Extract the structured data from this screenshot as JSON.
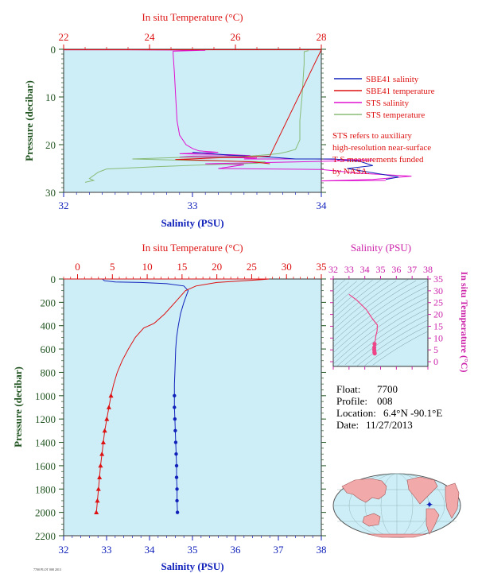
{
  "colors": {
    "panel_bg": "#cdeef7",
    "temperature": "#dd1111",
    "salinity": "#1122bb",
    "sts_salinity": "#e010d0",
    "sts_temperature": "#88bb77",
    "pressure_axis": "#225522",
    "ts_axis": "#cc22aa",
    "ts_curve": "#ee4488",
    "note": "#dd1111"
  },
  "info": {
    "float_label": "Float:",
    "float_value": "7700",
    "profile_label": "Profile:",
    "profile_value": "008",
    "location_label": "Location:",
    "location_value": "6.4°N  -90.1°E",
    "date_label": "Date:",
    "date_value": "11/27/2013"
  },
  "note": [
    "STS refers to auxiliary",
    "high-resolution near-surface",
    "T-S measurements funded",
    "by NASA."
  ],
  "footer": "7700 PLOT 008 2013",
  "map": {
    "marker_lat": 6.4,
    "marker_lon": -90.1
  },
  "chart_data": [
    {
      "type": "line",
      "id": "top",
      "xlabel": "Salinity (PSU)",
      "x2label": "In situ Temperature (°C)",
      "ylabel": "Pressure (decibar)",
      "xlim": [
        32,
        34
      ],
      "xticks": [
        32,
        33,
        34
      ],
      "x2lim": [
        22,
        28
      ],
      "x2ticks": [
        22,
        24,
        26,
        28
      ],
      "ylim": [
        30,
        0
      ],
      "yticks": [
        0,
        10,
        20,
        30
      ],
      "legend": [
        {
          "name": "SBE41 salinity",
          "color": "#1122bb"
        },
        {
          "name": "SBE41 temperature",
          "color": "#dd1111"
        },
        {
          "name": "STS salinity",
          "color": "#e010d0"
        },
        {
          "name": "STS temperature",
          "color": "#88bb77"
        }
      ],
      "series": [
        {
          "name": "STS salinity",
          "axis": "salinity",
          "color": "#e010d0",
          "points": [
            [
              32.0,
              0.1
            ],
            [
              32.5,
              0.1
            ],
            [
              33.1,
              0.2
            ],
            [
              32.85,
              0.4
            ],
            [
              32.85,
              1
            ],
            [
              32.86,
              5
            ],
            [
              32.87,
              10
            ],
            [
              32.88,
              15
            ],
            [
              32.9,
              18
            ],
            [
              32.95,
              20
            ],
            [
              33.0,
              20.8
            ],
            [
              33.05,
              21.3
            ],
            [
              33.2,
              21.6
            ],
            [
              32.9,
              21.9
            ],
            [
              33.3,
              22.1
            ],
            [
              33.45,
              22.3
            ],
            [
              33.0,
              22.4
            ],
            [
              32.9,
              22.6
            ],
            [
              33.5,
              22.8
            ],
            [
              33.4,
              23
            ],
            [
              33.95,
              23
            ],
            [
              34.4,
              23.2
            ],
            [
              34.0,
              23.5
            ],
            [
              33.5,
              23.8
            ],
            [
              33.1,
              24
            ],
            [
              33.4,
              24.2
            ],
            [
              33.2,
              25
            ],
            [
              34.0,
              25.2
            ],
            [
              34.3,
              26
            ],
            [
              34.7,
              26.6
            ],
            [
              34.4,
              27.3
            ],
            [
              34.0,
              27.6
            ],
            [
              34.5,
              27.5
            ]
          ]
        },
        {
          "name": "SBE41 salinity",
          "axis": "salinity",
          "color": "#1122bb",
          "points": [
            [
              33.0,
              21.6
            ],
            [
              33.3,
              22.2
            ],
            [
              33.6,
              22.6
            ],
            [
              33.8,
              23.0
            ],
            [
              34.1,
              23.0
            ],
            [
              34.3,
              23.5
            ],
            [
              34.4,
              24.4
            ],
            [
              34.2,
              25.0
            ],
            [
              34.6,
              26.8
            ],
            [
              34.5,
              27.3
            ]
          ]
        },
        {
          "name": "STS temperature",
          "axis": "temperature",
          "color": "#88bb77",
          "points": [
            [
              27.7,
              0.3
            ],
            [
              27.6,
              0.5
            ],
            [
              27.6,
              3
            ],
            [
              27.55,
              10
            ],
            [
              27.5,
              15
            ],
            [
              27.5,
              19
            ],
            [
              27.4,
              21
            ],
            [
              27.2,
              21.5
            ],
            [
              27.0,
              21.9
            ],
            [
              26.6,
              22.2
            ],
            [
              26.2,
              22.5
            ],
            [
              25.0,
              22.6
            ],
            [
              24.3,
              22.8
            ],
            [
              23.6,
              23.0
            ],
            [
              24.5,
              23.2
            ],
            [
              25.5,
              23.4
            ],
            [
              26.7,
              23.6
            ],
            [
              26.5,
              23.9
            ],
            [
              25.4,
              24.2
            ],
            [
              24.2,
              24.6
            ],
            [
              23.0,
              25.1
            ],
            [
              22.8,
              25.8
            ],
            [
              22.6,
              27.1
            ],
            [
              22.7,
              27.5
            ],
            [
              22.5,
              27.9
            ]
          ]
        },
        {
          "name": "SBE41 temperature",
          "axis": "temperature",
          "color": "#dd1111",
          "points": [
            [
              22.0,
              0.1
            ],
            [
              28.0,
              0.1
            ],
            [
              26.8,
              22.4
            ],
            [
              25.5,
              22.8
            ],
            [
              24.6,
              23.1
            ],
            [
              26.4,
              23.6
            ],
            [
              26.8,
              24.0
            ]
          ]
        }
      ]
    },
    {
      "type": "line",
      "id": "bottom",
      "xlabel": "Salinity (PSU)",
      "x2label": "In situ Temperature (°C)",
      "ylabel": "Pressure (decibar)",
      "xlim": [
        32,
        38
      ],
      "xticks": [
        32,
        33,
        34,
        35,
        36,
        37,
        38
      ],
      "x2lim": [
        -2,
        35
      ],
      "x2ticks": [
        0,
        5,
        10,
        15,
        20,
        25,
        30,
        35
      ],
      "ylim": [
        2200,
        0
      ],
      "yticks": [
        0,
        200,
        400,
        600,
        800,
        1000,
        1200,
        1400,
        1600,
        1800,
        2000,
        2200
      ],
      "series": [
        {
          "name": "Salinity",
          "axis": "salinity",
          "color": "#1122bb",
          "points": [
            [
              32.0,
              0
            ],
            [
              32.9,
              0
            ],
            [
              32.95,
              15
            ],
            [
              33.2,
              25
            ],
            [
              33.8,
              30
            ],
            [
              34.4,
              40
            ],
            [
              34.8,
              60
            ],
            [
              34.9,
              100
            ],
            [
              34.85,
              150
            ],
            [
              34.8,
              200
            ],
            [
              34.72,
              300
            ],
            [
              34.67,
              400
            ],
            [
              34.63,
              500
            ],
            [
              34.61,
              600
            ],
            [
              34.6,
              700
            ],
            [
              34.59,
              800
            ],
            [
              34.58,
              900
            ],
            [
              34.58,
              1000
            ],
            [
              34.58,
              1100
            ],
            [
              34.59,
              1200
            ],
            [
              34.6,
              1300
            ],
            [
              34.61,
              1400
            ],
            [
              34.62,
              1500
            ],
            [
              34.63,
              1600
            ],
            [
              34.63,
              1700
            ],
            [
              34.64,
              1800
            ],
            [
              34.64,
              1900
            ],
            [
              34.65,
              2000
            ]
          ],
          "markers_from": 1000
        },
        {
          "name": "Temperature",
          "axis": "temperature",
          "color": "#dd1111",
          "points": [
            [
              -2,
              0
            ],
            [
              27.5,
              0
            ],
            [
              26.5,
              5
            ],
            [
              20,
              30
            ],
            [
              17,
              60
            ],
            [
              15.5,
              100
            ],
            [
              14,
              200
            ],
            [
              12.5,
              300
            ],
            [
              11,
              380
            ],
            [
              9.5,
              420
            ],
            [
              8.3,
              500
            ],
            [
              7.3,
              600
            ],
            [
              6.4,
              700
            ],
            [
              5.7,
              800
            ],
            [
              5.2,
              900
            ],
            [
              4.8,
              1000
            ],
            [
              4.5,
              1100
            ],
            [
              4.2,
              1200
            ],
            [
              3.9,
              1300
            ],
            [
              3.7,
              1400
            ],
            [
              3.5,
              1500
            ],
            [
              3.3,
              1600
            ],
            [
              3.15,
              1700
            ],
            [
              3.0,
              1800
            ],
            [
              2.85,
              1900
            ],
            [
              2.7,
              2000
            ]
          ],
          "markers_from": 1000
        }
      ]
    },
    {
      "type": "line",
      "id": "ts",
      "xlabel": "Salinity (PSU)",
      "ylabel": "In situ Temperature (°C)",
      "xlim": [
        32,
        38
      ],
      "xticks": [
        32,
        33,
        34,
        35,
        36,
        37,
        38
      ],
      "ylim": [
        -2,
        35
      ],
      "yticks": [
        0,
        5,
        10,
        15,
        20,
        25,
        30,
        35
      ],
      "series": [
        {
          "name": "T-S",
          "color": "#ee4488",
          "points": [
            [
              33.0,
              28.5
            ],
            [
              33.5,
              26
            ],
            [
              34.1,
              22
            ],
            [
              34.5,
              18
            ],
            [
              34.8,
              15.5
            ],
            [
              34.78,
              13
            ],
            [
              34.7,
              11
            ],
            [
              34.66,
              9
            ],
            [
              34.62,
              7.5
            ],
            [
              34.6,
              6
            ],
            [
              34.6,
              5
            ],
            [
              34.61,
              4
            ],
            [
              34.63,
              3.5
            ]
          ]
        }
      ]
    }
  ]
}
